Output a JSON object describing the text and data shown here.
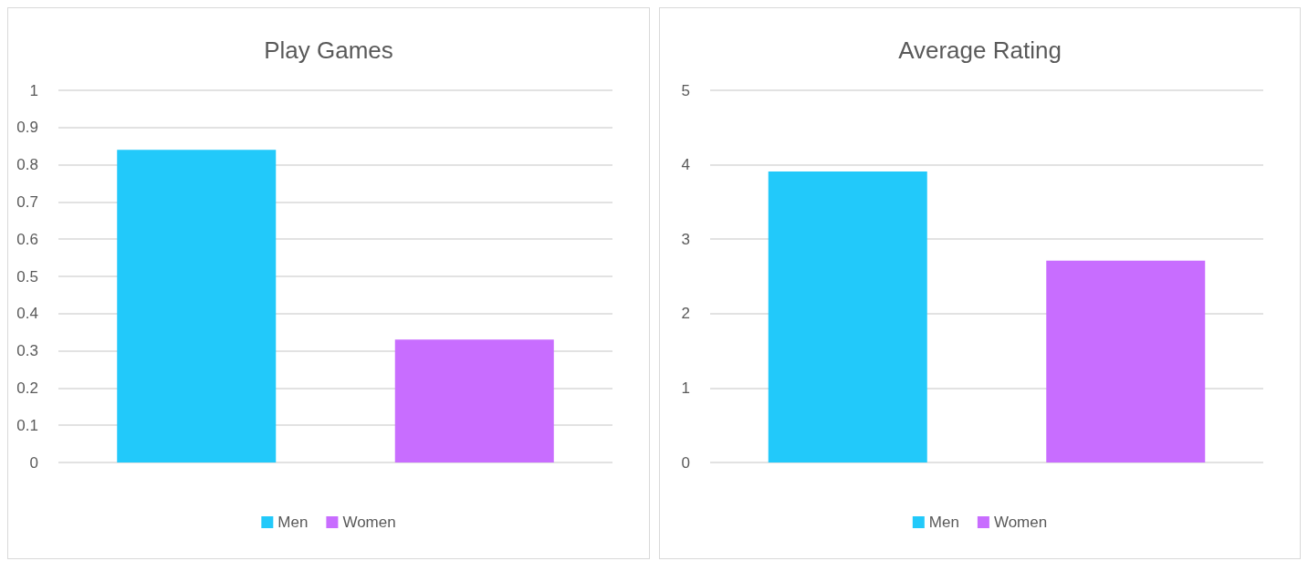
{
  "chart_data": [
    {
      "type": "bar",
      "title": "Play Games",
      "categories": [
        null
      ],
      "series": [
        {
          "name": "Men",
          "color": "#22c9fa",
          "values": [
            0.84
          ]
        },
        {
          "name": "Women",
          "color": "#c86dff",
          "values": [
            0.33
          ]
        }
      ],
      "ylim": [
        0,
        1
      ],
      "yticks": [
        0,
        0.1,
        0.2,
        0.3,
        0.4,
        0.5,
        0.6,
        0.7,
        0.8,
        0.9,
        1
      ],
      "grid": "y",
      "legend": "bottom"
    },
    {
      "type": "bar",
      "title": "Average Rating",
      "categories": [
        null
      ],
      "series": [
        {
          "name": "Men",
          "color": "#22c9fa",
          "values": [
            3.91
          ]
        },
        {
          "name": "Women",
          "color": "#c86dff",
          "values": [
            2.71
          ]
        }
      ],
      "ylim": [
        0,
        5
      ],
      "yticks": [
        0,
        1,
        2,
        3,
        4,
        5
      ],
      "grid": "y",
      "legend": "bottom"
    }
  ]
}
